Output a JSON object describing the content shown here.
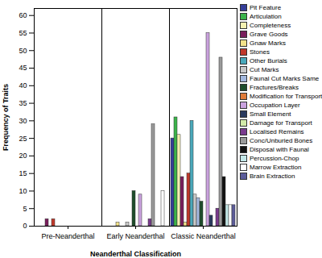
{
  "chart_data": {
    "type": "bar",
    "x_label": "Neanderthal Classification",
    "y_label": "Frequency of Traits",
    "categories": [
      "Pre-Neanderthal",
      "Early Neanderthal",
      "Classic Neanderthal"
    ],
    "series": [
      {
        "name": "Pit Feature",
        "color": "#353e99",
        "values": [
          0,
          0,
          25
        ]
      },
      {
        "name": "Articulation",
        "color": "#3bb34a",
        "values": [
          0,
          0,
          31
        ]
      },
      {
        "name": "Completeness",
        "color": "#f4f0b0",
        "values": [
          0,
          0,
          26
        ]
      },
      {
        "name": "Grave Goods",
        "color": "#7a1f5c",
        "values": [
          2,
          0,
          14
        ]
      },
      {
        "name": "Gnaw Marks",
        "color": "#f2e28a",
        "values": [
          0,
          1,
          1
        ]
      },
      {
        "name": "Stones",
        "color": "#c0392b",
        "values": [
          2,
          0,
          15
        ]
      },
      {
        "name": "Other Burials",
        "color": "#4aa9bb",
        "values": [
          0,
          0,
          30
        ]
      },
      {
        "name": "Cut Marks",
        "color": "#c8c8c8",
        "values": [
          0,
          1,
          9
        ]
      },
      {
        "name": "Faunal Cut Marks Same",
        "color": "#a3b8de",
        "values": [
          0,
          0,
          8
        ]
      },
      {
        "name": "Fractures/Breaks",
        "color": "#1e4d2b",
        "values": [
          0,
          10,
          7
        ]
      },
      {
        "name": "Modification for Transport",
        "color": "#e07b39",
        "values": [
          0,
          0,
          0
        ]
      },
      {
        "name": "Occupation Layer",
        "color": "#caa2de",
        "values": [
          0,
          9,
          55
        ]
      },
      {
        "name": "Small Element",
        "color": "#2a3a5e",
        "values": [
          0,
          0,
          3
        ]
      },
      {
        "name": "Damage for Transport",
        "color": "#d2eaa8",
        "values": [
          0,
          0,
          0
        ]
      },
      {
        "name": "Localised Remains",
        "color": "#7a3b8e",
        "values": [
          0,
          2,
          5
        ]
      },
      {
        "name": "Conc/Unburied Bones",
        "color": "#9a9a9a",
        "values": [
          0,
          29,
          48
        ]
      },
      {
        "name": "Disposal with Faunal",
        "color": "#111111",
        "values": [
          0,
          0,
          14
        ]
      },
      {
        "name": "Percussion-Chop",
        "color": "#c4e8e8",
        "values": [
          0,
          0,
          6
        ]
      },
      {
        "name": "Marrow Extraction",
        "color": "#ffffff",
        "values": [
          0,
          10,
          6
        ]
      },
      {
        "name": "Brain Extraction",
        "color": "#5c5c99",
        "values": [
          0,
          0,
          6
        ]
      }
    ],
    "ylim": [
      0,
      62
    ],
    "yticks": [
      0,
      5,
      10,
      15,
      20,
      25,
      30,
      35,
      40,
      45,
      50,
      55,
      60
    ],
    "grid": false,
    "legend": "top-right"
  }
}
